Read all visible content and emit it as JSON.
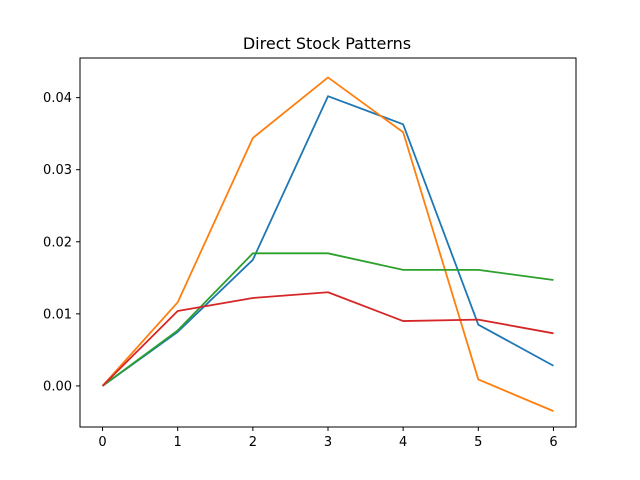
{
  "chart_data": {
    "type": "line",
    "title": "Direct Stock Patterns",
    "xlabel": "",
    "ylabel": "",
    "x": [
      0,
      1,
      2,
      3,
      4,
      5,
      6
    ],
    "xticks": [
      "0",
      "1",
      "2",
      "3",
      "4",
      "5",
      "6"
    ],
    "yticks": [
      {
        "value": 0.0,
        "label": "0.00"
      },
      {
        "value": 0.01,
        "label": "0.01"
      },
      {
        "value": 0.02,
        "label": "0.02"
      },
      {
        "value": 0.03,
        "label": "0.03"
      },
      {
        "value": 0.04,
        "label": "0.04"
      }
    ],
    "xlim": [
      -0.3,
      6.3
    ],
    "ylim": [
      -0.0057,
      0.0455
    ],
    "grid": false,
    "legend": "none",
    "series": [
      {
        "color": "#1f77b4",
        "values": [
          0.0,
          0.0075,
          0.0175,
          0.0402,
          0.0363,
          0.0085,
          0.0028
        ]
      },
      {
        "color": "#ff7f0e",
        "values": [
          0.0,
          0.0116,
          0.0344,
          0.0428,
          0.0352,
          0.0009,
          -0.0035
        ]
      },
      {
        "color": "#2ca02c",
        "values": [
          0.0,
          0.0077,
          0.0184,
          0.0184,
          0.0161,
          0.0161,
          0.0147
        ]
      },
      {
        "color": "#d62728",
        "values": [
          0.0,
          0.0104,
          0.0122,
          0.013,
          0.009,
          0.0092,
          0.0073
        ]
      }
    ]
  }
}
